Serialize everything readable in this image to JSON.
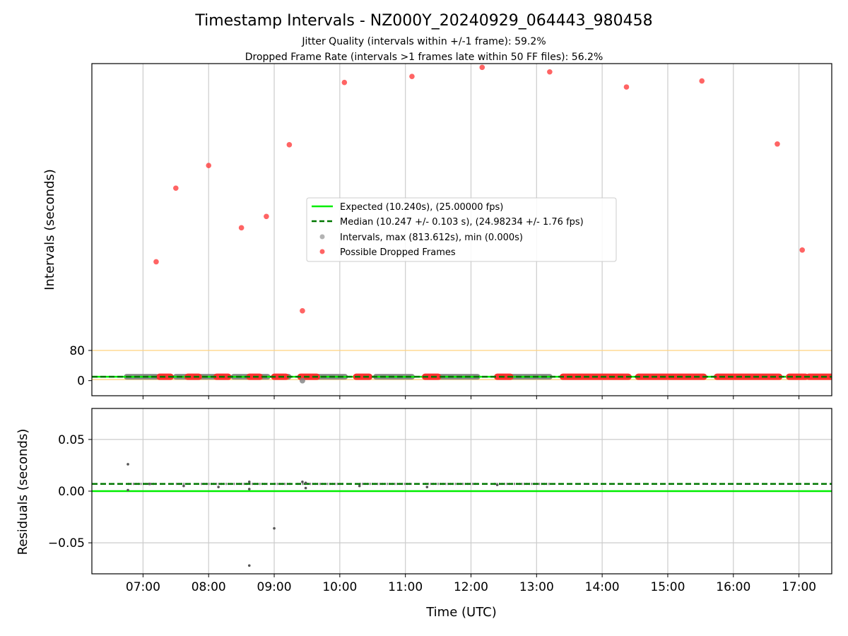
{
  "title": "Timestamp Intervals - NZ000Y_20240929_064443_980458",
  "subtitle_lines": [
    "Jitter Quality (intervals within +/-1 frame): 59.2%",
    "Dropped Frame Rate (intervals >1 frames late within 50 FF files): 56.2%"
  ],
  "colors": {
    "expected": "#00ee00",
    "median": "#007700",
    "intervals": "#808080",
    "dropped": "#ff3030",
    "threshold": "#ffd27f",
    "grid": "#cccccc"
  },
  "chart_data": [
    {
      "type": "scatter",
      "panel": "top",
      "ylabel": "Intervals (seconds)",
      "x_ticks": [
        "07:00",
        "08:00",
        "09:00",
        "10:00",
        "11:00",
        "12:00",
        "13:00",
        "14:00",
        "15:00",
        "16:00",
        "17:00"
      ],
      "x_range_hours": [
        6.22,
        17.5
      ],
      "y_ticks": [
        0,
        80
      ],
      "y_range": [
        -40,
        840
      ],
      "grid": "vertical",
      "threshold_line": 80,
      "legend_position": "center",
      "legend": [
        "Expected (10.240s), (25.00000 fps)",
        "Median (10.247 +/- 0.103 s), (24.98234 +/- 1.76 fps)",
        "Intervals, max (813.612s), min (0.000s)",
        "Possible Dropped Frames"
      ],
      "expected_value": 10.24,
      "median_value": 10.247,
      "interval_bands": [
        [
          6.75,
          7.2
        ],
        [
          7.5,
          7.65
        ],
        [
          7.88,
          8.12
        ],
        [
          8.38,
          8.6
        ],
        [
          8.8,
          8.9
        ],
        [
          9.08,
          9.22
        ],
        [
          9.6,
          10.08
        ],
        [
          10.55,
          11.1
        ],
        [
          11.5,
          12.1
        ],
        [
          12.45,
          13.2
        ]
      ],
      "dropped_bands": [
        [
          7.25,
          7.42
        ],
        [
          7.68,
          7.85
        ],
        [
          8.12,
          8.3
        ],
        [
          8.62,
          8.78
        ],
        [
          9.0,
          9.18
        ],
        [
          9.4,
          9.65
        ],
        [
          10.25,
          10.45
        ],
        [
          11.3,
          11.5
        ],
        [
          12.4,
          12.6
        ],
        [
          13.4,
          14.4
        ],
        [
          14.55,
          15.55
        ],
        [
          15.75,
          16.7
        ],
        [
          16.85,
          17.1
        ],
        [
          17.15,
          17.5
        ]
      ],
      "dropped_points": [
        {
          "x": 7.2,
          "y": 315
        },
        {
          "x": 7.5,
          "y": 510
        },
        {
          "x": 8.0,
          "y": 570
        },
        {
          "x": 8.5,
          "y": 405
        },
        {
          "x": 8.88,
          "y": 435
        },
        {
          "x": 9.23,
          "y": 625
        },
        {
          "x": 9.43,
          "y": 185
        },
        {
          "x": 10.07,
          "y": 790
        },
        {
          "x": 11.1,
          "y": 806
        },
        {
          "x": 12.17,
          "y": 830
        },
        {
          "x": 13.2,
          "y": 818
        },
        {
          "x": 14.37,
          "y": 778
        },
        {
          "x": 15.52,
          "y": 794
        },
        {
          "x": 16.67,
          "y": 627
        },
        {
          "x": 17.05,
          "y": 346
        }
      ],
      "interval_outliers": [
        {
          "x": 9.43,
          "y": 0
        }
      ]
    },
    {
      "type": "scatter",
      "panel": "bottom",
      "xlabel": "Time (UTC)",
      "ylabel": "Residuals (seconds)",
      "x_ticks": [
        "07:00",
        "08:00",
        "09:00",
        "10:00",
        "11:00",
        "12:00",
        "13:00",
        "14:00",
        "15:00",
        "16:00",
        "17:00"
      ],
      "x_range_hours": [
        6.22,
        17.5
      ],
      "y_ticks": [
        -0.05,
        0.0,
        0.05
      ],
      "y_tick_labels": [
        "−0.05",
        "0.00",
        "0.05"
      ],
      "y_range": [
        -0.08,
        0.08
      ],
      "grid": "both",
      "expected_residual": 0.0,
      "median_residual": 0.007,
      "residual_bands": [
        [
          6.77,
          7.2
        ],
        [
          7.5,
          7.65
        ],
        [
          7.88,
          8.35
        ],
        [
          8.38,
          8.6
        ],
        [
          8.62,
          8.9
        ],
        [
          9.0,
          9.25
        ],
        [
          9.35,
          10.05
        ],
        [
          10.3,
          11.1
        ],
        [
          11.3,
          12.1
        ],
        [
          12.35,
          13.2
        ]
      ],
      "residual_points": [
        {
          "x": 6.77,
          "y": 0.026
        },
        {
          "x": 6.77,
          "y": 0.001
        },
        {
          "x": 7.1,
          "y": 0.007
        },
        {
          "x": 7.62,
          "y": 0.005
        },
        {
          "x": 8.15,
          "y": 0.004
        },
        {
          "x": 8.62,
          "y": 0.009
        },
        {
          "x": 8.62,
          "y": 0.002
        },
        {
          "x": 8.62,
          "y": -0.072
        },
        {
          "x": 9.0,
          "y": -0.036
        },
        {
          "x": 9.43,
          "y": 0.009
        },
        {
          "x": 9.48,
          "y": 0.003
        },
        {
          "x": 9.48,
          "y": 0.008
        },
        {
          "x": 10.3,
          "y": 0.005
        },
        {
          "x": 11.33,
          "y": 0.004
        },
        {
          "x": 12.4,
          "y": 0.006
        }
      ]
    }
  ]
}
